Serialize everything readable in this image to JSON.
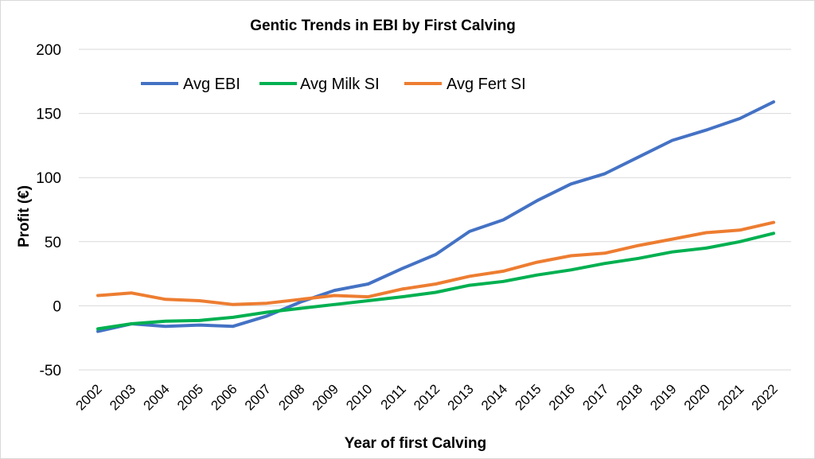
{
  "chart_data": {
    "type": "line",
    "title": "Gentic Trends in EBI by First Calving",
    "xlabel": "Year of first Calving",
    "ylabel": "Profit (€)",
    "ylim": [
      -50,
      200
    ],
    "yticks": [
      -50,
      0,
      50,
      100,
      150,
      200
    ],
    "grid": true,
    "legend_position": "top-left",
    "categories": [
      "2002",
      "2003",
      "2004",
      "2005",
      "2006",
      "2007",
      "2008",
      "2009",
      "2010",
      "2011",
      "2012",
      "2013",
      "2014",
      "2015",
      "2016",
      "2017",
      "2018",
      "2019",
      "2020",
      "2021",
      "2022"
    ],
    "series": [
      {
        "name": "Avg EBI",
        "color": "#4472C4",
        "values": [
          -20,
          -14,
          -16,
          -15,
          -16,
          -8,
          3,
          12,
          17,
          29,
          40,
          58,
          67,
          82,
          95,
          103,
          116,
          129,
          137,
          146,
          159
        ]
      },
      {
        "name": "Avg Milk SI",
        "color": "#00B050",
        "values": [
          -18,
          -14,
          -12,
          -11.5,
          -9,
          -5,
          -2,
          1,
          4,
          7,
          10.5,
          16,
          19,
          24,
          28,
          33,
          37,
          42,
          45,
          50,
          56.5
        ]
      },
      {
        "name": "Avg Fert SI",
        "color": "#ED7D31",
        "values": [
          8,
          10,
          5,
          4,
          1,
          2,
          5,
          8,
          7,
          13,
          17,
          23,
          27,
          34,
          39,
          41,
          47,
          52,
          57,
          59,
          65
        ]
      }
    ]
  }
}
